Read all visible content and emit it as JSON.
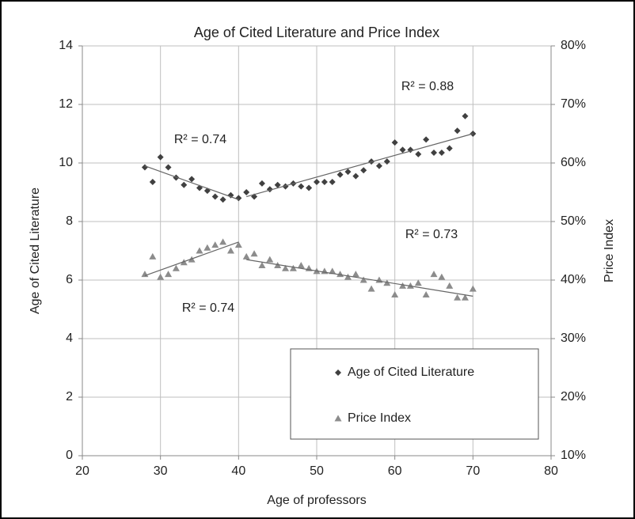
{
  "chart_data": {
    "type": "scatter",
    "title": "Age of Cited Literature and Price Index",
    "x_label": "Age of professors",
    "y_label": "Age of Cited Literature",
    "y2_label": "Price Index",
    "xlim": [
      20,
      80
    ],
    "xticks": [
      20,
      30,
      40,
      50,
      60,
      70,
      80
    ],
    "ylim": [
      0,
      14
    ],
    "yticks": [
      0,
      2,
      4,
      6,
      8,
      10,
      12,
      14
    ],
    "y2lim": [
      10,
      80
    ],
    "y2ticks": [
      {
        "value": 10,
        "label": "10%"
      },
      {
        "value": 20,
        "label": "20%"
      },
      {
        "value": 30,
        "label": "30%"
      },
      {
        "value": 40,
        "label": "40%"
      },
      {
        "value": 50,
        "label": "50%"
      },
      {
        "value": 60,
        "label": "60%"
      },
      {
        "value": 70,
        "label": "70%"
      },
      {
        "value": 80,
        "label": "80%"
      }
    ],
    "grid": true,
    "legend": "lower right",
    "x": [
      28,
      29,
      30,
      31,
      32,
      33,
      34,
      35,
      36,
      37,
      38,
      39,
      40,
      41,
      42,
      43,
      44,
      45,
      46,
      47,
      48,
      49,
      50,
      51,
      52,
      53,
      54,
      55,
      56,
      57,
      58,
      59,
      60,
      61,
      62,
      63,
      64,
      65,
      66,
      67,
      68,
      69,
      70
    ],
    "series": [
      {
        "name": "Age of Cited Literature",
        "color": "#404040",
        "marker": "diamond",
        "values": [
          9.85,
          9.35,
          10.2,
          9.85,
          9.5,
          9.25,
          9.45,
          9.15,
          9.05,
          8.85,
          8.75,
          8.9,
          8.8,
          9.0,
          8.85,
          9.3,
          9.1,
          9.25,
          9.2,
          9.3,
          9.2,
          9.15,
          9.35,
          9.35,
          9.35,
          9.6,
          9.7,
          9.55,
          9.75,
          10.05,
          9.9,
          10.05,
          10.7,
          10.45,
          10.45,
          10.3,
          10.8,
          10.35,
          10.35,
          10.5,
          11.1,
          11.6,
          11.0
        ]
      },
      {
        "name": "Price Index",
        "color": "#8c8c8c",
        "marker": "triangle",
        "axis": "y2",
        "values": [
          41,
          44,
          40.5,
          41,
          42,
          43,
          43.5,
          45,
          45.5,
          46,
          46.5,
          45,
          46,
          44,
          44.5,
          42.5,
          43.5,
          42.5,
          42,
          42,
          42.5,
          42,
          41.5,
          41.5,
          41.5,
          41,
          40.5,
          41,
          40,
          38.5,
          40,
          39.5,
          37.5,
          39,
          39,
          39.5,
          37.5,
          41,
          40.5,
          39,
          37,
          37,
          38.5
        ]
      }
    ],
    "trendlines": [
      {
        "x": [
          28,
          40
        ],
        "values": [
          9.9,
          8.75
        ],
        "label": "R² = 0.74"
      },
      {
        "x": [
          41,
          70
        ],
        "values": [
          8.85,
          11.0
        ],
        "label": "R² = 0.88"
      },
      {
        "x": [
          28,
          40
        ],
        "values": [
          40.75,
          46.5
        ],
        "axis": "y2",
        "label": "R² = 0.74"
      },
      {
        "x": [
          41,
          70
        ],
        "values": [
          43.5,
          37.25
        ],
        "axis": "y2",
        "label": "R² = 0.73"
      }
    ]
  }
}
